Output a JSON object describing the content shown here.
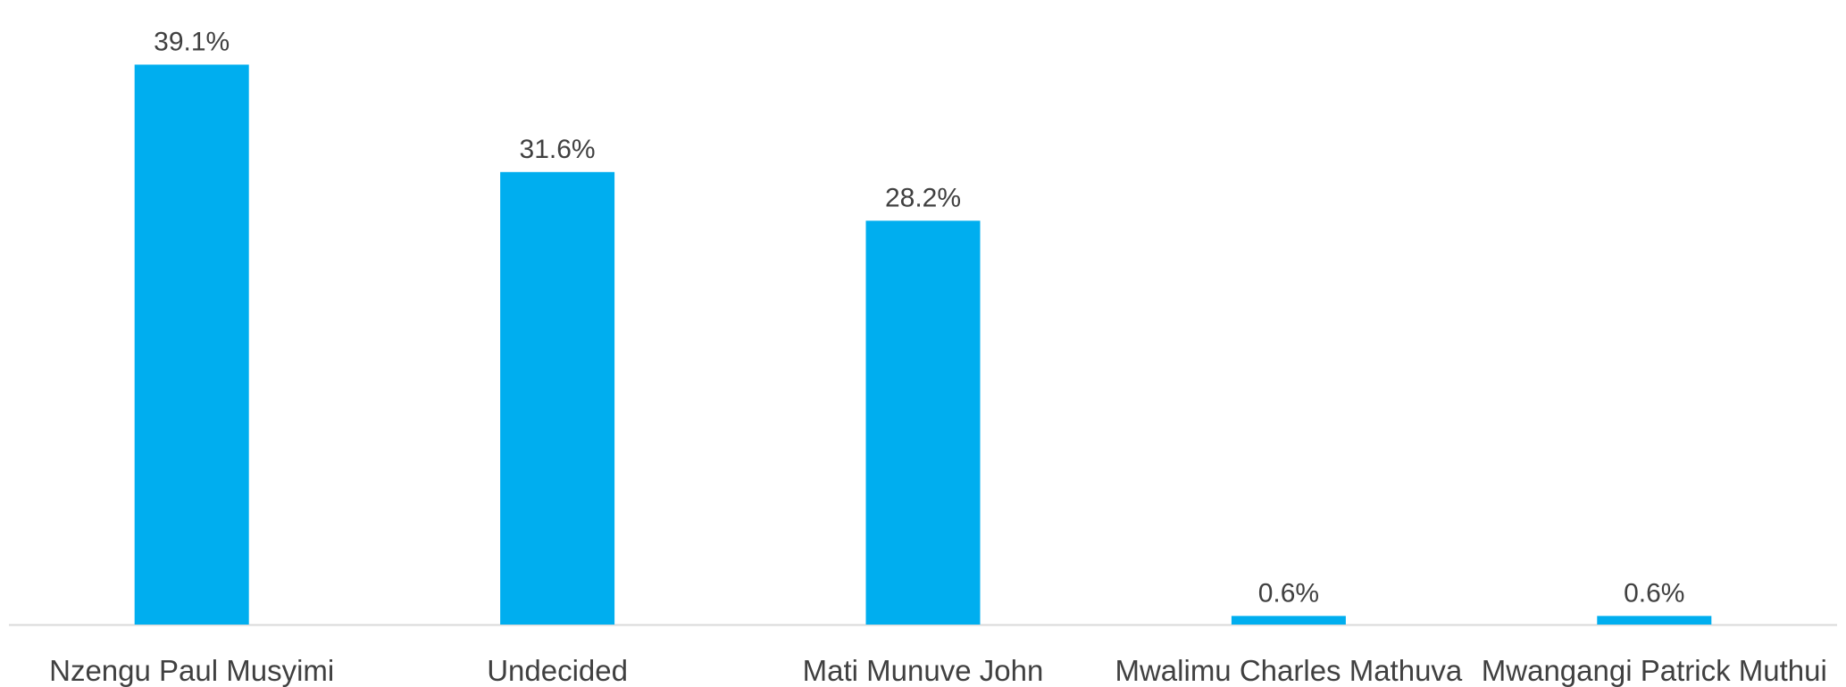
{
  "chart_data": {
    "type": "bar",
    "categories": [
      "Nzengu Paul Musyimi",
      "Undecided",
      "Mati Munuve John",
      "Mwalimu Charles Mathuva",
      "Mwangangi Patrick Muthui"
    ],
    "values": [
      39.1,
      31.6,
      28.2,
      0.6,
      0.6
    ],
    "data_labels": [
      "39.1%",
      "31.6%",
      "28.2%",
      "0.6%",
      "0.6%"
    ],
    "value_format": "percent",
    "title": "",
    "xlabel": "",
    "ylabel": "",
    "ylim": [
      0,
      40
    ],
    "grid": false,
    "legend": "none",
    "colors": {
      "bar": "#00AEEF",
      "axis": "#D9D9D9",
      "label": "#404040"
    }
  }
}
